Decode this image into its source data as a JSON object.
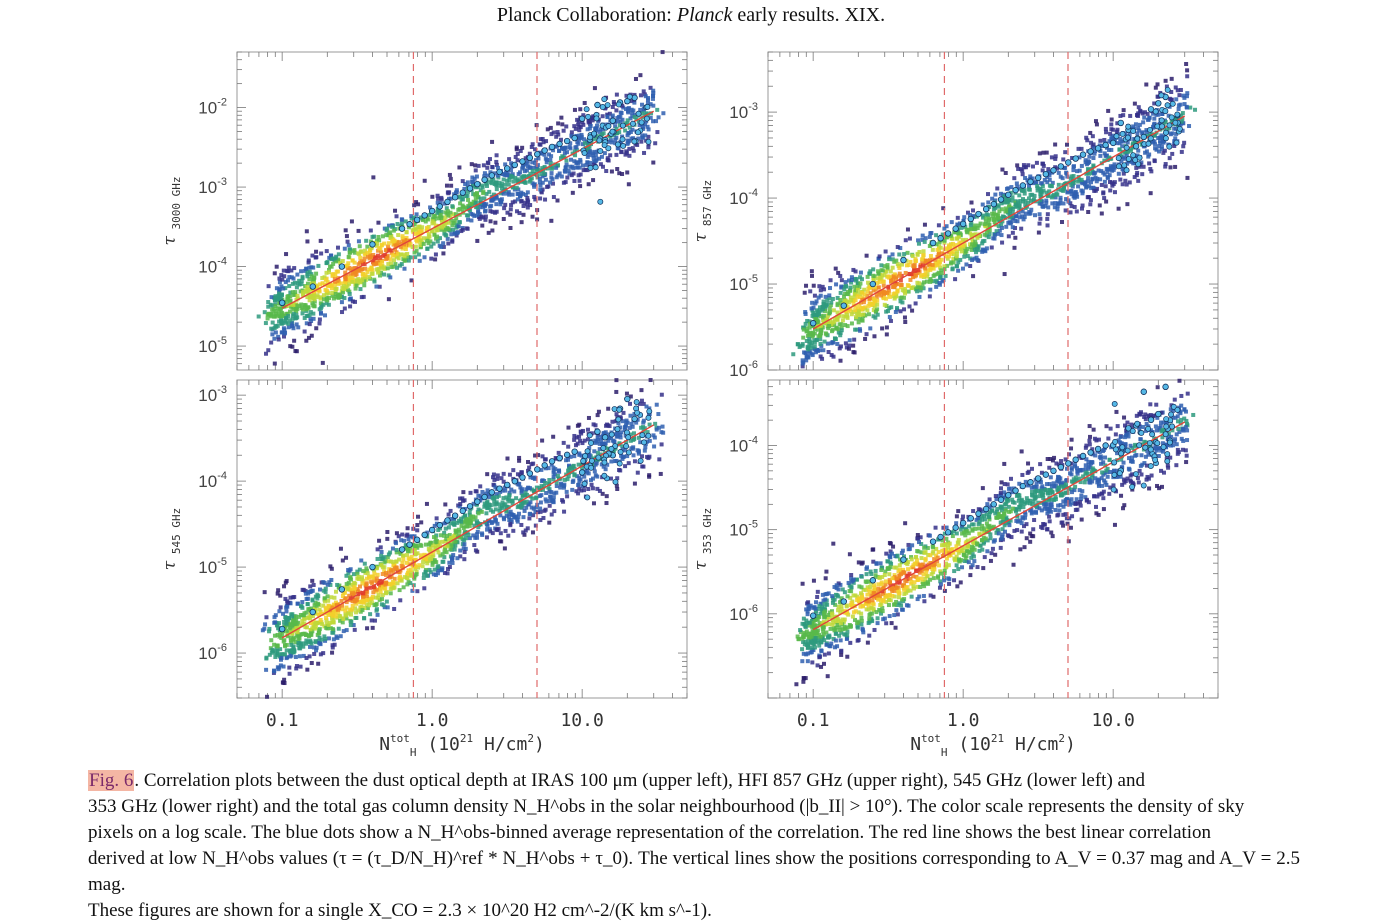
{
  "header": {
    "prefix": "Planck Collaboration: ",
    "italic": "Planck",
    "suffix": " early results. XIX."
  },
  "caption": {
    "figref": "Fig. 6",
    "line1": ". Correlation plots between the dust optical depth at  IRAS  100 μm (upper left),  HFI 857 GHz (upper right), 545 GHz (lower left) and",
    "line2": "353 GHz (lower right) and the total gas column density N_H^obs in the solar neighbourhood (|b_II| > 10°). The color scale represents the density of sky",
    "line3": "pixels on a log scale. The blue dots show a N_H^obs-binned average representation of the correlation. The red line shows the best linear correlation",
    "line4": "derived at low N_H^obs values (τ = (τ_D/N_H)^ref * N_H^obs + τ_0). The vertical lines show the positions corresponding to A_V = 0.37 mag and A_V = 2.5 mag.",
    "line5": "These figures are shown for a single X_CO = 2.3 × 10^20 H2 cm^-2/(K km s^-1)."
  },
  "chart_data": [
    {
      "type": "scatter",
      "panel": "upper-left",
      "ylabel": "τ 3000 GHz",
      "xlabel": "N_H^tot (10^21 H/cm^2)",
      "xscale": "log",
      "yscale": "log",
      "xlim": [
        0.05,
        50
      ],
      "ylim": [
        5e-06,
        0.05
      ],
      "x_ticks": [
        "0.1",
        "1.0",
        "10.0"
      ],
      "y_ticks": [
        "10^-2",
        "10^-3",
        "10^-4",
        "10^-5"
      ],
      "vlines": [
        0.75,
        5.0
      ],
      "fit_line": {
        "x": [
          0.1,
          30
        ],
        "y": [
          3e-05,
          0.009
        ]
      },
      "binned": {
        "x": [
          0.1,
          0.16,
          0.25,
          0.4,
          0.63,
          1.0,
          1.6,
          2.5,
          4.0,
          6.3,
          10,
          16,
          25
        ],
        "y": [
          3.5e-05,
          5.6e-05,
          0.0001,
          0.00019,
          0.0003,
          0.0005,
          0.00085,
          0.0014,
          0.0021,
          0.0032,
          0.0045,
          0.008,
          0.014
        ]
      }
    },
    {
      "type": "scatter",
      "panel": "upper-right",
      "ylabel": "τ 857 GHz",
      "xscale": "log",
      "yscale": "log",
      "xlim": [
        0.05,
        50
      ],
      "ylim": [
        1e-06,
        0.005
      ],
      "y_ticks": [
        "10^-3",
        "10^-4",
        "10^-5",
        "10^-6"
      ],
      "vlines": [
        0.75,
        5.0
      ],
      "fit_line": {
        "x": [
          0.1,
          30
        ],
        "y": [
          3e-06,
          0.0009
        ]
      },
      "binned": {
        "x": [
          0.1,
          0.16,
          0.25,
          0.4,
          0.63,
          1.0,
          1.6,
          2.5,
          4.0,
          6.3,
          10,
          16,
          25
        ],
        "y": [
          3.5e-06,
          5.6e-06,
          1e-05,
          1.9e-05,
          3e-05,
          5e-05,
          8.5e-05,
          0.00014,
          0.00021,
          0.00032,
          0.00045,
          0.0008,
          0.0014
        ]
      }
    },
    {
      "type": "scatter",
      "panel": "lower-left",
      "ylabel": "τ 545 GHz",
      "xlabel": "N_H^tot (10^21 H/cm^2)",
      "xscale": "log",
      "yscale": "log",
      "xlim": [
        0.05,
        50
      ],
      "ylim": [
        3e-07,
        0.0015
      ],
      "x_ticks": [
        "0.1",
        "1.0",
        "10.0"
      ],
      "y_ticks": [
        "10^-3",
        "10^-4",
        "10^-5",
        "10^-6"
      ],
      "vlines": [
        0.75,
        5.0
      ],
      "fit_line": {
        "x": [
          0.1,
          30
        ],
        "y": [
          1.5e-06,
          0.00045
        ]
      },
      "binned": {
        "x": [
          0.1,
          0.16,
          0.25,
          0.4,
          0.63,
          1.0,
          1.6,
          2.5,
          4.0,
          6.3,
          10,
          16,
          25
        ],
        "y": [
          1.9e-06,
          3e-06,
          5.5e-06,
          1e-05,
          1.6e-05,
          2.7e-05,
          4.5e-05,
          7.4e-05,
          0.00011,
          0.00017,
          0.00024,
          0.0004,
          0.0007
        ]
      }
    },
    {
      "type": "scatter",
      "panel": "lower-right",
      "ylabel": "τ 353 GHz",
      "xlabel": "N_H^tot (10^21 H/cm^2)",
      "xscale": "log",
      "yscale": "log",
      "xlim": [
        0.05,
        50
      ],
      "ylim": [
        1e-07,
        0.0006
      ],
      "x_ticks": [
        "0.1",
        "1.0",
        "10.0"
      ],
      "y_ticks": [
        "10^-4",
        "10^-5",
        "10^-6"
      ],
      "vlines": [
        0.75,
        5.0
      ],
      "fit_line": {
        "x": [
          0.1,
          30
        ],
        "y": [
          6.5e-07,
          0.00019
        ]
      },
      "binned": {
        "x": [
          0.1,
          0.16,
          0.25,
          0.4,
          0.63,
          1.0,
          1.6,
          2.5,
          4.0,
          6.3,
          10,
          16,
          25
        ],
        "y": [
          9.5e-07,
          1.4e-06,
          2.5e-06,
          4.4e-06,
          7.2e-06,
          1.2e-05,
          2e-05,
          3.3e-05,
          5e-05,
          7.5e-05,
          0.00011,
          0.00018,
          0.0003
        ]
      }
    }
  ],
  "panel_text": {
    "ul_ylabel": "τ",
    "ul_ysub": "3000 GHz",
    "ur_ylabel": "τ",
    "ur_ysub": "857 GHz",
    "ll_ylabel": "τ",
    "ll_ysub": "545 GHz",
    "lr_ylabel": "τ",
    "lr_ysub": "353 GHz",
    "xlabel_main": "N",
    "xlabel_sup": "tot",
    "xlabel_sub": "H",
    "xlabel_rest": "(10",
    "xlabel_exp": "21",
    "xlabel_unit": "H/cm",
    "xlabel_pow": "2",
    "xlabel_close": ")"
  },
  "colors": {
    "fit": "#e0463a",
    "vline": "#e06a6a",
    "dots": "#55b8e6",
    "frame": "#999999"
  }
}
